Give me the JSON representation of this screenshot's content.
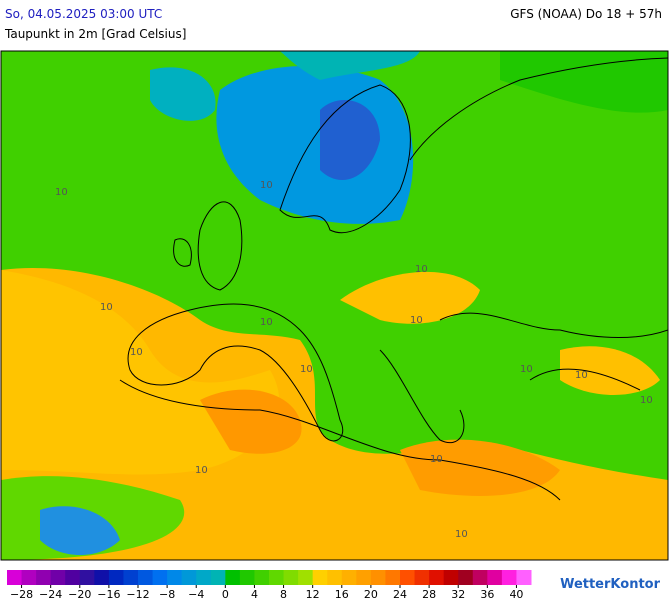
{
  "header": {
    "valid_time": "So, 04.05.2025 03:00 UTC",
    "parameter": "Taupunkt in 2m [Grad Celsius]",
    "model_run": "GFS (NOAA) Do 18 + 57h"
  },
  "map_labels": [
    "10",
    "10",
    "10",
    "10",
    "10",
    "10",
    "10",
    "10",
    "10",
    "10",
    "10",
    "10",
    "10",
    "10"
  ],
  "colorbar": {
    "lim": [
      -30,
      42
    ],
    "colors": [
      "#d800d8",
      "#b000c0",
      "#9000b0",
      "#7000a8",
      "#5000a0",
      "#3010a0",
      "#1010a8",
      "#0028c0",
      "#0040d0",
      "#0058e0",
      "#0070f0",
      "#0088e8",
      "#0098d8",
      "#00a8c8",
      "#00b4b4",
      "#00c000",
      "#20c800",
      "#40d000",
      "#60d800",
      "#80dc00",
      "#a0e000",
      "#ffd000",
      "#ffc000",
      "#ffb000",
      "#ffa000",
      "#ff9000",
      "#ff7800",
      "#ff5000",
      "#f03000",
      "#e01000",
      "#c00000",
      "#a00020",
      "#c00060",
      "#e000a0",
      "#ff20e0",
      "#ff60ff"
    ],
    "ticks": [
      {
        "value": -28,
        "label": "−28"
      },
      {
        "value": -24,
        "label": "−24"
      },
      {
        "value": -20,
        "label": "−20"
      },
      {
        "value": -16,
        "label": "−16"
      },
      {
        "value": -12,
        "label": "−12"
      },
      {
        "value": -8,
        "label": "−8"
      },
      {
        "value": -4,
        "label": "−4"
      },
      0,
      4,
      8,
      12,
      16,
      20,
      24,
      28,
      32,
      36,
      40
    ]
  },
  "logo": "WetterKontor"
}
